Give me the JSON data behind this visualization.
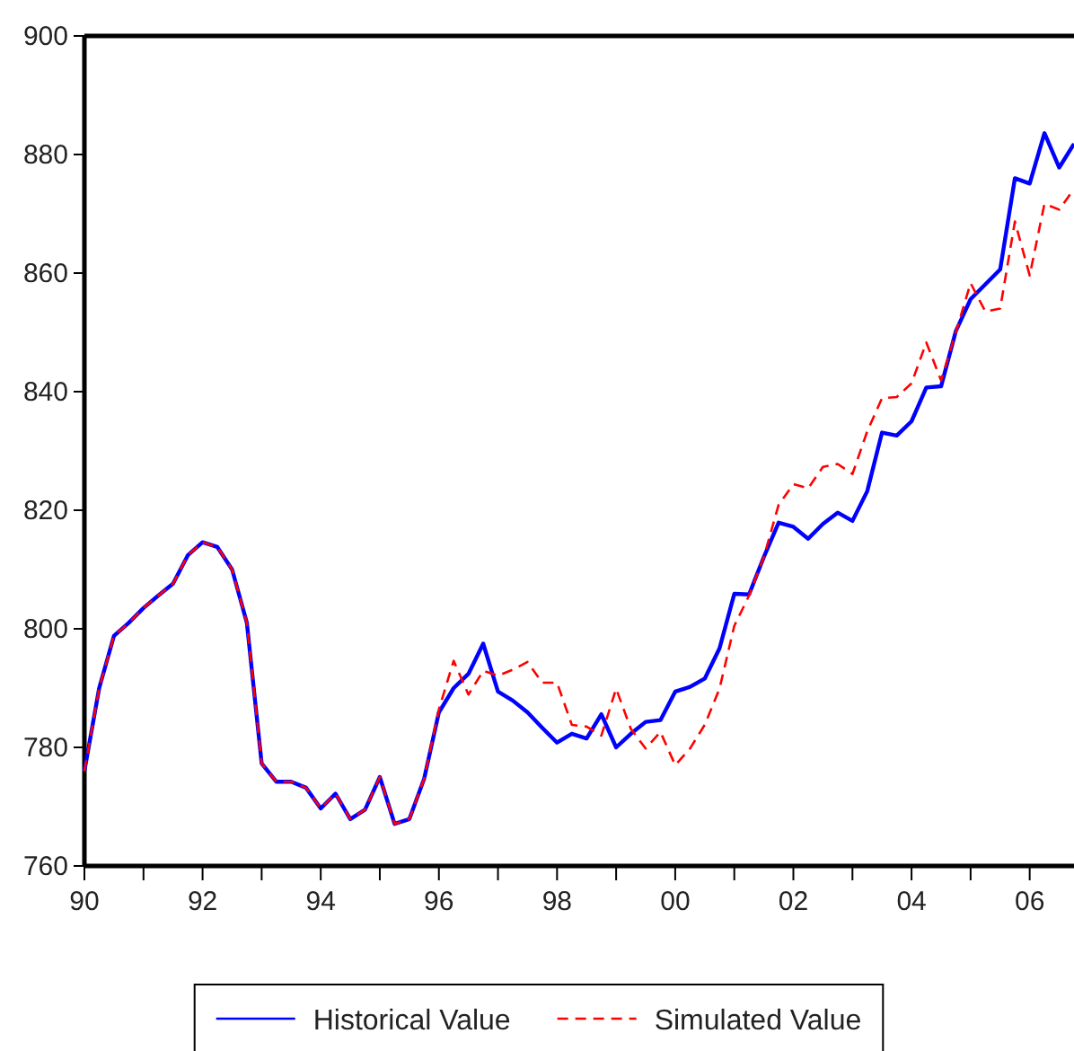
{
  "chart_data": {
    "type": "line",
    "x": [
      1990,
      1990.25,
      1990.5,
      1990.75,
      1991,
      1991.25,
      1991.5,
      1991.75,
      1992,
      1992.25,
      1992.5,
      1992.75,
      1993,
      1993.25,
      1993.5,
      1993.75,
      1994,
      1994.25,
      1994.5,
      1994.75,
      1995,
      1995.25,
      1995.5,
      1995.75,
      1996,
      1996.25,
      1996.5,
      1996.75,
      1997,
      1997.25,
      1997.5,
      1997.75,
      1998,
      1998.25,
      1998.5,
      1998.75,
      1999,
      1999.25,
      1999.5,
      1999.75,
      2000,
      2000.25,
      2000.5,
      2000.75,
      2001,
      2001.25,
      2001.5,
      2001.75,
      2002,
      2002.25,
      2002.5,
      2002.75,
      2003,
      2003.25,
      2003.5,
      2003.75,
      2004,
      2004.25,
      2004.5,
      2004.75,
      2005,
      2005.25,
      2005.5,
      2005.75,
      2006,
      2006.25,
      2006.5,
      2006.75
    ],
    "series": [
      {
        "name": "Historical Value",
        "color": "#0000ff",
        "line_style": "solid",
        "values": [
          776,
          790,
          798.8,
          801,
          803.5,
          805.6,
          807.6,
          812.4,
          814.6,
          813.8,
          810,
          801,
          777.3,
          774.2,
          774.2,
          773.2,
          769.7,
          772.2,
          767.9,
          769.5,
          775,
          767.1,
          767.9,
          774.7,
          785.9,
          790,
          792.4,
          797.5,
          789.4,
          787.9,
          785.9,
          783.3,
          780.8,
          782.3,
          781.5,
          785.6,
          780,
          782.3,
          784.3,
          784.6,
          789.4,
          790.2,
          791.6,
          796.7,
          805.9,
          805.8,
          812.1,
          817.9,
          817.2,
          815.2,
          817.7,
          819.6,
          818.2,
          823.2,
          833.1,
          832.6,
          835,
          840.7,
          840.9,
          850.2,
          855.6,
          858.1,
          860.6,
          876,
          875.1,
          883.6,
          877.8,
          881.8
        ]
      },
      {
        "name": "Simulated Value",
        "color": "#ff0000",
        "line_style": "dashed",
        "values": [
          776,
          790,
          798.8,
          801,
          803.5,
          805.6,
          807.6,
          812.4,
          814.6,
          813.8,
          810,
          801,
          777.3,
          774.2,
          774.2,
          773.2,
          769.7,
          772.2,
          767.9,
          769.5,
          775,
          767.1,
          767.9,
          774.7,
          786.4,
          794.6,
          788.9,
          792.9,
          792.1,
          793.1,
          794.4,
          790.9,
          790.9,
          783.8,
          783.5,
          782,
          789.9,
          783.1,
          779.8,
          782.6,
          777,
          779.8,
          783.8,
          789.9,
          800.5,
          805.6,
          812.1,
          820.9,
          824.4,
          823.7,
          827.3,
          827.8,
          826.1,
          833.3,
          838.9,
          839.1,
          841.4,
          848.3,
          841.9,
          850,
          858.3,
          853.5,
          854,
          868.7,
          859.6,
          871.7,
          870.7,
          874.2
        ]
      }
    ],
    "xlim": [
      1990,
      2006.75
    ],
    "xticks": [
      {
        "value": 1990,
        "label": "90"
      },
      {
        "value": 1991,
        "label": null
      },
      {
        "value": 1992,
        "label": "92"
      },
      {
        "value": 1993,
        "label": null
      },
      {
        "value": 1994,
        "label": "94"
      },
      {
        "value": 1995,
        "label": null
      },
      {
        "value": 1996,
        "label": "96"
      },
      {
        "value": 1997,
        "label": null
      },
      {
        "value": 1998,
        "label": "98"
      },
      {
        "value": 1999,
        "label": null
      },
      {
        "value": 2000,
        "label": "00"
      },
      {
        "value": 2001,
        "label": null
      },
      {
        "value": 2002,
        "label": "02"
      },
      {
        "value": 2003,
        "label": null
      },
      {
        "value": 2004,
        "label": "04"
      },
      {
        "value": 2005,
        "label": null
      },
      {
        "value": 2006,
        "label": "06"
      }
    ],
    "ylim": [
      760,
      900
    ],
    "yticks": [
      760,
      780,
      800,
      820,
      840,
      860,
      880,
      900
    ],
    "grid": false,
    "legend": "bottom"
  }
}
